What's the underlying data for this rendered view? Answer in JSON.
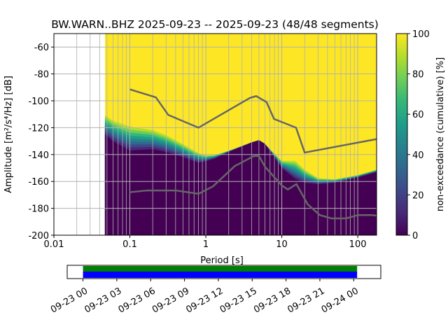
{
  "chart_data": {
    "type": "heatmap",
    "title": "BW.WARN..BHZ   2025-09-23 -- 2025-09-23  (48/48 segments)",
    "xlabel": "Period [s]",
    "ylabel": "Amplitude [m²/s⁴/Hz] [dB]",
    "xscale": "log",
    "xlim": [
      0.01,
      177
    ],
    "ylim": [
      -200,
      -50
    ],
    "xticks": [
      0.01,
      0.1,
      1,
      10,
      100
    ],
    "xtick_labels": [
      "0.01",
      "0.1",
      "1",
      "10",
      "100"
    ],
    "yticks": [
      -200,
      -180,
      -160,
      -140,
      -120,
      -100,
      -80,
      -60
    ],
    "grid": true,
    "data_start_period": 0.047,
    "ppsd_bands": {
      "periods": [
        0.047,
        0.06,
        0.1,
        0.2,
        0.3,
        0.5,
        0.8,
        1,
        1.3,
        2,
        4,
        5,
        6,
        8,
        10,
        15,
        20,
        30,
        50,
        100,
        177
      ],
      "low_edge_db_0pct": [
        -125,
        -130,
        -137,
        -136,
        -138,
        -142,
        -146,
        -145,
        -143,
        -138,
        -131,
        -129.5,
        -132,
        -142,
        -150,
        -158,
        -161,
        -162,
        -161,
        -157,
        -153
      ],
      "high_edge_db_100pct": [
        -109,
        -113,
        -117,
        -120,
        -124,
        -131,
        -138,
        -140,
        -140,
        -137,
        -131,
        -129,
        -132,
        -139,
        -144,
        -143,
        -150,
        -157,
        -158,
        -155,
        -151
      ]
    },
    "noise_models": [
      {
        "name": "NHNM",
        "periods": [
          0.1,
          0.22,
          0.32,
          0.8,
          3.8,
          4.6,
          6.3,
          7.9,
          15.4,
          20,
          177
        ],
        "db": [
          -91.5,
          -97.4,
          -110.5,
          -120,
          -97.9,
          -96.5,
          -101,
          -113.5,
          -120,
          -138.5,
          -128.5
        ]
      },
      {
        "name": "NLNM",
        "periods": [
          0.1,
          0.17,
          0.4,
          0.8,
          1.24,
          2.4,
          4.3,
          5,
          6,
          10,
          12,
          15.6,
          21.9,
          31.6,
          45,
          70,
          101,
          154,
          177
        ],
        "db": [
          -168,
          -166.7,
          -166.7,
          -169.2,
          -163.7,
          -148.6,
          -141.1,
          -141.1,
          -149,
          -163,
          -166,
          -162,
          -177,
          -185,
          -187.5,
          -187.5,
          -185,
          -185,
          -185.5
        ]
      }
    ],
    "colorbar": {
      "label": "non-exceedance (cumulative) [%]",
      "range": [
        0,
        100
      ],
      "ticks": [
        0,
        20,
        40,
        60,
        80,
        100
      ],
      "colormap": "viridis"
    },
    "timeline": {
      "tick_labels": [
        "09-23 00",
        "09-23 03",
        "09-23 06",
        "09-23 09",
        "09-23 12",
        "09-23 15",
        "09-23 18",
        "09-23 21",
        "09-24 00"
      ],
      "range_hours": [
        -1.4,
        26.4
      ],
      "coverage_hours": [
        0,
        24.3
      ],
      "colors": {
        "data": "#0000ff",
        "used": "#008000"
      }
    }
  }
}
